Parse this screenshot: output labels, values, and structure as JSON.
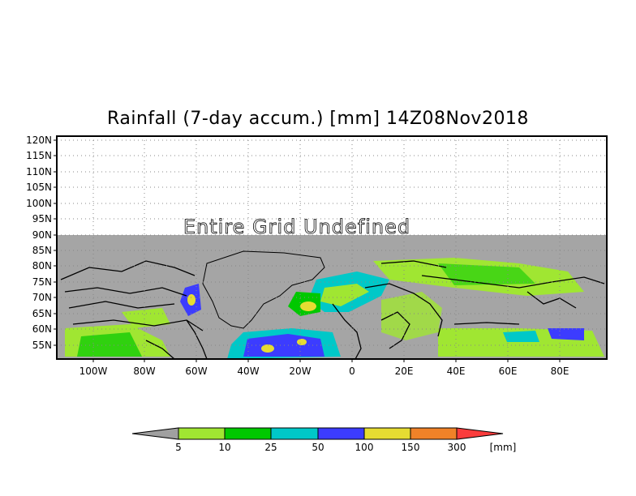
{
  "title": "Rainfall (7-day accum.) [mm] 14Z08Nov2018",
  "undefined_label": "Entire Grid Undefined",
  "lat_ticks": [
    "120N",
    "115N",
    "110N",
    "105N",
    "100N",
    "95N",
    "90N",
    "85N",
    "80N",
    "75N",
    "70N",
    "65N",
    "60N",
    "55N"
  ],
  "lon_ticks": [
    "100W",
    "80W",
    "60W",
    "40W",
    "20W",
    "0",
    "20E",
    "40E",
    "60E",
    "80E"
  ],
  "colorbar": {
    "levels": [
      "5",
      "10",
      "25",
      "50",
      "100",
      "150",
      "300"
    ],
    "unit": "[mm]",
    "colors": [
      "#a0e632",
      "#00c800",
      "#00c8c8",
      "#3c3cff",
      "#e6dc32",
      "#f08228",
      "#fa3c3c"
    ],
    "under_color": "#a0a0a0"
  },
  "colors": {
    "undefined_fill": "#a5a5a5",
    "background": "#ffffff"
  }
}
